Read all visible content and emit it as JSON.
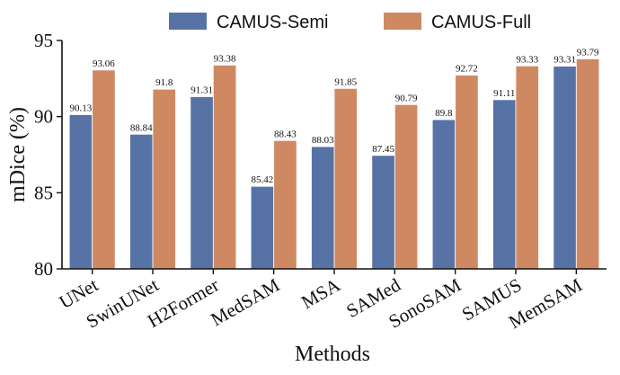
{
  "chart_data": {
    "type": "bar",
    "categories": [
      "UNet",
      "SwinUNet",
      "H2Former",
      "MedSAM",
      "MSA",
      "SAMed",
      "SonoSAM",
      "SAMUS",
      "MemSAM"
    ],
    "series": [
      {
        "name": "CAMUS-Semi",
        "values": [
          90.13,
          88.84,
          91.31,
          85.42,
          88.03,
          87.45,
          89.8,
          91.11,
          93.31
        ],
        "labels": [
          "90.13",
          "88.84",
          "91.31",
          "85.42",
          "88.03",
          "87.45",
          "89.8",
          "91.11",
          "93.31"
        ],
        "color": "#5773a6"
      },
      {
        "name": "CAMUS-Full",
        "values": [
          93.06,
          91.8,
          93.38,
          88.43,
          91.85,
          90.79,
          92.72,
          93.33,
          93.79
        ],
        "labels": [
          "93.06",
          "91.8",
          "93.38",
          "88.43",
          "91.85",
          "90.79",
          "92.72",
          "93.33",
          "93.79"
        ],
        "color": "#cf8962"
      }
    ],
    "xlabel": "Methods",
    "ylabel": "mDice (%)",
    "ylim": [
      80,
      95
    ],
    "yticks": [
      "80",
      "85",
      "90",
      "95"
    ],
    "grid": false,
    "legend_position": "top"
  }
}
